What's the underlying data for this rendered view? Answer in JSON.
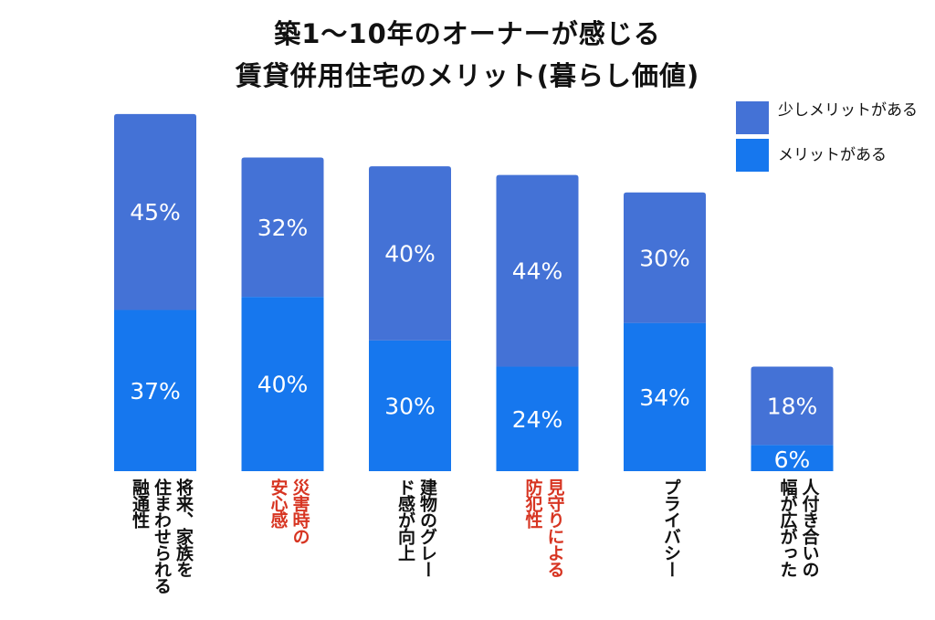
{
  "chart_data": {
    "type": "bar",
    "stacked": true,
    "title_lines": [
      "築1〜10年のオーナーが感じる",
      "賃貸併用住宅のメリット(暮らし価値)"
    ],
    "categories": [
      "将来、家族を住まわせられる融通性",
      "災害時の安心感",
      "建物のグレード感が向上",
      "見守りによる防犯性",
      "プライバシー",
      "人付き合いの幅が広がった"
    ],
    "category_lines": [
      [
        "将来、家族を",
        "住まわせられる",
        "融通性"
      ],
      [
        "災害時の",
        "安心感"
      ],
      [
        "建物のグレー",
        "ド感が向上"
      ],
      [
        "見守りによる",
        "防犯性"
      ],
      [
        "プライバシー"
      ],
      [
        "人付き合いの",
        "幅が広がった"
      ]
    ],
    "highlighted": [
      false,
      true,
      false,
      true,
      false,
      false
    ],
    "series": [
      {
        "name": "メリットがある",
        "values": [
          37,
          40,
          30,
          24,
          34,
          6
        ],
        "color": "#1677ee"
      },
      {
        "name": "少しメリットがある",
        "values": [
          45,
          32,
          40,
          44,
          30,
          18
        ],
        "color": "#4472d6"
      }
    ],
    "legend": [
      "少しメリットがある",
      "メリットがある"
    ],
    "legend_position": "top-right",
    "value_suffix": "%",
    "ylim": [
      0,
      100
    ],
    "grid": false
  },
  "colors": {
    "highlight_label": "#d73522",
    "label_text": "#ffffff"
  }
}
